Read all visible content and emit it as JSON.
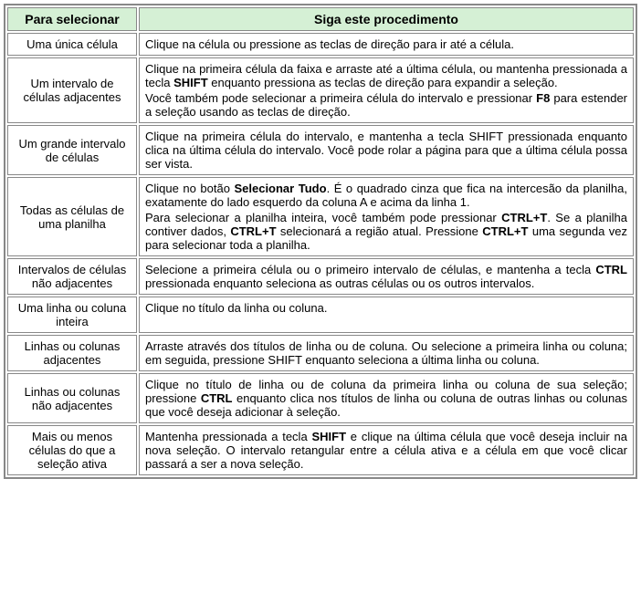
{
  "headers": {
    "left": "Para selecionar",
    "right": "Siga este procedimento"
  },
  "rows": [
    {
      "label": "Uma única célula",
      "content": [
        {
          "parts": [
            {
              "t": "Clique na célula ou pressione as teclas de direção para ir até a célula."
            }
          ]
        }
      ]
    },
    {
      "label": "Um intervalo de células adjacentes",
      "content": [
        {
          "parts": [
            {
              "t": "Clique na primeira célula da faixa e arraste até a última célula, ou mantenha pressionada a tecla "
            },
            {
              "t": "SHIFT",
              "b": true
            },
            {
              "t": " enquanto pressiona as teclas de direção para expandir a seleção."
            }
          ]
        },
        {
          "parts": [
            {
              "t": "Você também pode selecionar a primeira célula do intervalo e pressionar "
            },
            {
              "t": "F8",
              "b": true
            },
            {
              "t": " para estender a seleção usando as teclas de direção."
            }
          ]
        }
      ]
    },
    {
      "label": "Um grande intervalo de células",
      "content": [
        {
          "parts": [
            {
              "t": "Clique na primeira célula do intervalo, e mantenha a tecla SHIFT pressionada enquanto clica na última célula do intervalo. Você pode rolar a página para que a última célula possa ser vista."
            }
          ]
        }
      ]
    },
    {
      "label": "Todas as células de uma planilha",
      "content": [
        {
          "parts": [
            {
              "t": "Clique no botão "
            },
            {
              "t": "Selecionar Tudo",
              "b": true
            },
            {
              "t": ". É o quadrado cinza que fica na intercesão da planilha, exatamente do lado esquerdo da coluna A e acima da linha 1."
            }
          ]
        },
        {
          "parts": [
            {
              "t": "Para selecionar a planilha inteira, você também pode pressionar "
            },
            {
              "t": "CTRL+T",
              "b": true
            },
            {
              "t": ". Se a planilha contiver dados, "
            },
            {
              "t": "CTRL+T",
              "b": true
            },
            {
              "t": " selecionará a região atual. Pressione "
            },
            {
              "t": "CTRL+T",
              "b": true
            },
            {
              "t": " uma segunda vez para selecionar toda a planilha."
            }
          ]
        }
      ]
    },
    {
      "label": "Intervalos de células não adjacentes",
      "content": [
        {
          "parts": [
            {
              "t": "Selecione a primeira célula ou o primeiro intervalo de células, e mantenha a tecla "
            },
            {
              "t": "CTRL",
              "b": true
            },
            {
              "t": " pressionada enquanto seleciona as outras células ou os outros intervalos."
            }
          ]
        }
      ]
    },
    {
      "label": "Uma linha ou coluna inteira",
      "content": [
        {
          "parts": [
            {
              "t": "Clique no título da linha ou coluna."
            }
          ]
        }
      ]
    },
    {
      "label": "Linhas ou colunas adjacentes",
      "content": [
        {
          "parts": [
            {
              "t": "Arraste através dos títulos de linha ou de coluna. Ou selecione a primeira linha ou coluna; em seguida, pressione SHIFT enquanto seleciona a última linha ou coluna."
            }
          ]
        }
      ]
    },
    {
      "label": "Linhas ou colunas não adjacentes",
      "content": [
        {
          "parts": [
            {
              "t": "Clique no título de linha ou de coluna da primeira linha ou coluna de sua seleção; pressione "
            },
            {
              "t": "CTRL",
              "b": true
            },
            {
              "t": " enquanto clica nos títulos de linha ou coluna de outras linhas ou colunas que você deseja adicionar à seleção."
            }
          ]
        }
      ]
    },
    {
      "label": "Mais ou menos células do que a seleção ativa",
      "content": [
        {
          "parts": [
            {
              "t": "Mantenha pressionada a tecla "
            },
            {
              "t": "SHIFT",
              "b": true
            },
            {
              "t": " e clique na última célula que você deseja incluir na nova seleção. O intervalo retangular entre a célula ativa e a célula em que você clicar passará a ser a nova seleção."
            }
          ]
        }
      ]
    }
  ]
}
